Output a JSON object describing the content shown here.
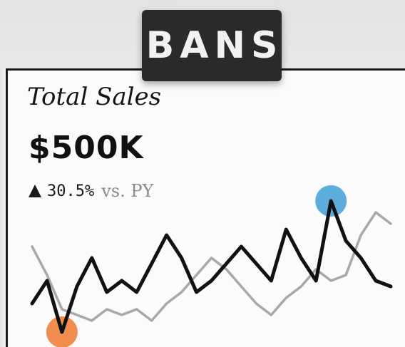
{
  "badge": {
    "label": "BANS"
  },
  "metric": {
    "label": "Total Sales",
    "value": "$500K",
    "delta_pct": "30.5%",
    "delta_ref": "vs. PY",
    "delta_direction": "up"
  },
  "colors": {
    "current": "#111111",
    "prior": "#a8a8a8",
    "low_marker": "#f0823c",
    "high_marker": "#4aa3d8",
    "badge_bg": "#2a2a2a"
  },
  "chart_data": {
    "type": "line",
    "x": [
      1,
      2,
      3,
      4,
      5,
      6,
      7,
      8,
      9,
      10,
      11,
      12,
      13,
      14,
      15,
      16,
      17,
      18,
      19,
      20,
      21,
      22,
      23,
      24,
      25
    ],
    "series": [
      {
        "values": [
          1.2,
          1.6,
          0.7,
          1.5,
          2.0,
          1.4,
          1.6,
          1.4,
          1.9,
          2.4,
          2.0,
          1.4,
          1.6,
          1.9,
          2.2,
          1.9,
          1.6,
          2.5,
          2.0,
          1.6,
          3.0,
          2.3,
          2.0,
          1.6,
          1.5
        ]
      },
      {
        "values": [
          2.2,
          1.7,
          1.1,
          1.0,
          0.9,
          1.1,
          1.0,
          1.1,
          0.9,
          1.2,
          1.4,
          1.7,
          2.0,
          1.8,
          1.5,
          1.2,
          1.0,
          1.3,
          1.5,
          1.8,
          1.6,
          1.7,
          2.4,
          2.8,
          2.6
        ]
      }
    ],
    "markers": [
      {
        "series": 0,
        "index": 2,
        "color": "#f0823c"
      },
      {
        "series": 0,
        "index": 20,
        "color": "#4aa3d8"
      }
    ],
    "ylim": [
      0.4,
      3.4
    ],
    "grid": false,
    "legend": "none",
    "xlabel": "",
    "ylabel": ""
  }
}
